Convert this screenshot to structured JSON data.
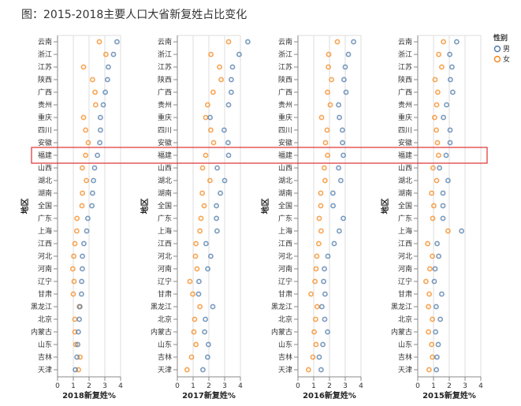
{
  "title": "图：2015-2018主要人口大省新复姓占比变化",
  "colors": {
    "男": "#4c78a8",
    "女": "#f58518",
    "highlight": "#e03030"
  },
  "chart_data": {
    "type": "scatter",
    "y_label": "地区",
    "highlighted_category": "福建",
    "legend": {
      "title": "性别",
      "entries": [
        "男",
        "女"
      ],
      "placement": "top-right"
    },
    "categories": [
      "云南",
      "浙江",
      "江苏",
      "陕西",
      "广西",
      "贵州",
      "重庆",
      "四川",
      "安徽",
      "福建",
      "山西",
      "湖北",
      "湖南",
      "全国",
      "广东",
      "上海",
      "江西",
      "河北",
      "河南",
      "辽宁",
      "甘肃",
      "黑龙江",
      "北京",
      "内蒙古",
      "山东",
      "吉林",
      "天津"
    ],
    "x_ticks": [
      "0",
      "1",
      "2",
      "3",
      "4"
    ],
    "xlim": [
      0,
      4
    ],
    "grid": true,
    "panels": [
      {
        "xlabel": "2018新复姓%",
        "男": [
          3.77,
          3.55,
          3.22,
          3.17,
          3.03,
          2.9,
          2.72,
          2.72,
          2.68,
          2.53,
          2.35,
          2.28,
          2.22,
          2.18,
          1.92,
          1.85,
          1.67,
          1.58,
          1.57,
          1.53,
          1.52,
          1.42,
          1.38,
          1.32,
          1.28,
          1.23,
          1.13
        ],
        "女": [
          2.65,
          3.07,
          1.65,
          2.22,
          2.38,
          2.42,
          1.65,
          1.78,
          1.95,
          1.78,
          1.57,
          1.83,
          1.58,
          1.55,
          1.23,
          1.22,
          1.1,
          1.03,
          0.97,
          1.05,
          1.0,
          1.38,
          1.1,
          1.1,
          1.15,
          1.43,
          1.33
        ]
      },
      {
        "xlabel": "2017新复姓%",
        "男": [
          4.47,
          3.92,
          3.5,
          3.42,
          3.42,
          3.25,
          2.08,
          2.97,
          3.22,
          3.25,
          2.53,
          3.0,
          2.73,
          2.48,
          2.48,
          2.52,
          1.82,
          2.12,
          1.93,
          1.37,
          1.35,
          2.25,
          1.78,
          1.73,
          1.97,
          1.92,
          1.62
        ],
        "女": [
          3.25,
          2.13,
          2.68,
          2.78,
          2.27,
          1.92,
          1.8,
          2.12,
          2.3,
          1.8,
          1.6,
          2.07,
          1.58,
          1.7,
          1.5,
          1.43,
          1.18,
          1.15,
          1.25,
          0.8,
          0.98,
          1.43,
          1.1,
          1.05,
          1.18,
          0.9,
          0.62
        ]
      },
      {
        "xlabel": "2016新复姓%",
        "男": [
          3.53,
          3.2,
          3.0,
          2.92,
          3.05,
          2.58,
          2.63,
          2.82,
          2.83,
          2.88,
          2.58,
          2.72,
          2.22,
          2.23,
          2.88,
          2.62,
          2.3,
          1.9,
          1.68,
          1.63,
          1.72,
          1.52,
          1.7,
          1.88,
          1.58,
          1.35,
          1.47
        ],
        "女": [
          2.5,
          1.95,
          1.93,
          2.13,
          1.88,
          2.05,
          1.5,
          1.85,
          1.75,
          1.88,
          1.67,
          1.72,
          1.45,
          1.45,
          1.35,
          1.47,
          1.32,
          1.2,
          1.15,
          1.08,
          0.83,
          1.22,
          1.12,
          1.03,
          1.15,
          0.95,
          0.67
        ]
      },
      {
        "xlabel": "2015新复姓%",
        "男": [
          2.47,
          2.03,
          2.17,
          2.07,
          2.22,
          1.83,
          1.63,
          2.05,
          2.05,
          1.8,
          1.38,
          1.92,
          1.6,
          1.6,
          1.6,
          2.78,
          1.23,
          1.33,
          1.1,
          1.05,
          1.52,
          1.17,
          1.43,
          1.13,
          1.3,
          1.22,
          1.18
        ],
        "女": [
          1.63,
          1.33,
          1.52,
          1.1,
          1.27,
          1.2,
          1.07,
          1.18,
          1.25,
          1.32,
          0.97,
          1.2,
          0.88,
          1.02,
          0.95,
          1.92,
          0.63,
          0.93,
          0.77,
          0.52,
          0.73,
          0.68,
          0.93,
          0.68,
          0.88,
          0.93,
          0.72
        ]
      }
    ]
  }
}
